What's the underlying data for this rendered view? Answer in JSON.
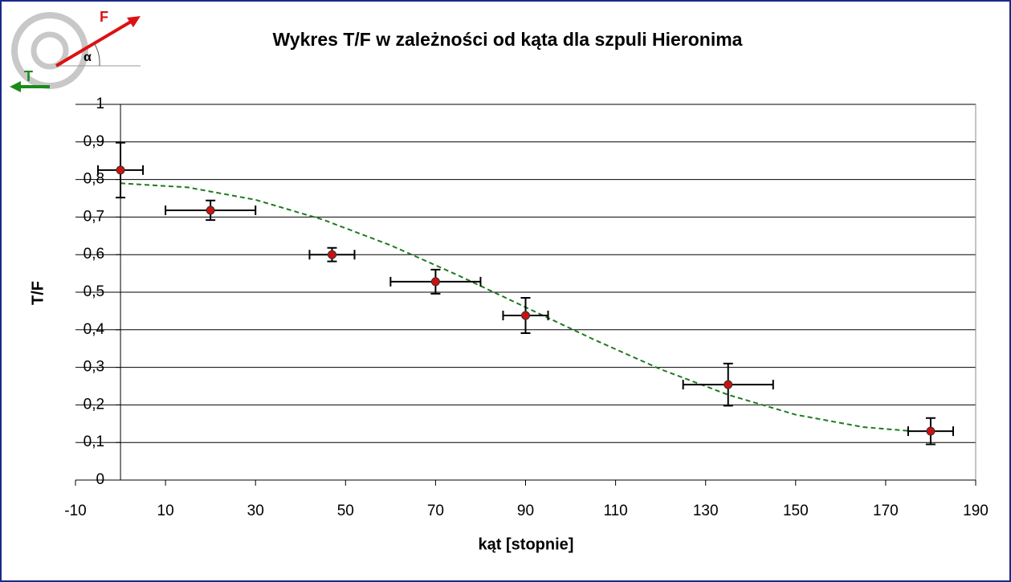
{
  "icon": {
    "force": "F",
    "angle": "α",
    "tension": "T"
  },
  "chart_data": {
    "type": "scatter",
    "title": "Wykres T/F w zależności od kąta dla szpuli Hieronima",
    "x_label": "kąt [stopnie]",
    "y_label": "T/F",
    "x": [
      0,
      20,
      47,
      70,
      90,
      135,
      180
    ],
    "values": [
      0.825,
      0.718,
      0.6,
      0.528,
      0.438,
      0.254,
      0.13
    ],
    "x_errors": [
      5,
      10,
      5,
      10,
      5,
      10,
      5
    ],
    "y_errors": [
      0.073,
      0.026,
      0.018,
      0.032,
      0.047,
      0.056,
      0.035
    ],
    "color": "#cc1111",
    "trend": {
      "color": "#1f7a1f",
      "x": [
        0,
        15,
        30,
        45,
        60,
        75,
        90,
        105,
        120,
        135,
        150,
        165,
        175
      ],
      "values": [
        0.79,
        0.779,
        0.746,
        0.693,
        0.625,
        0.545,
        0.46,
        0.375,
        0.295,
        0.227,
        0.174,
        0.141,
        0.131
      ]
    },
    "xlim": [
      -10,
      190
    ],
    "ylim": [
      0,
      1
    ],
    "xticks": [
      -10,
      10,
      30,
      50,
      70,
      90,
      110,
      130,
      150,
      170,
      190
    ],
    "yticks": [
      0,
      {
        "value": 0.1,
        "label": "0,1"
      },
      {
        "value": 0.2,
        "label": "0,2"
      },
      {
        "value": 0.3,
        "label": "0,3"
      },
      {
        "value": 0.4,
        "label": "0,4"
      },
      {
        "value": 0.5,
        "label": "0,5"
      },
      {
        "value": 0.6,
        "label": "0,6"
      },
      {
        "value": 0.7,
        "label": "0,7"
      },
      {
        "value": 0.8,
        "label": "0,8"
      },
      {
        "value": 0.9,
        "label": "0,9"
      },
      1
    ],
    "grid": true
  }
}
